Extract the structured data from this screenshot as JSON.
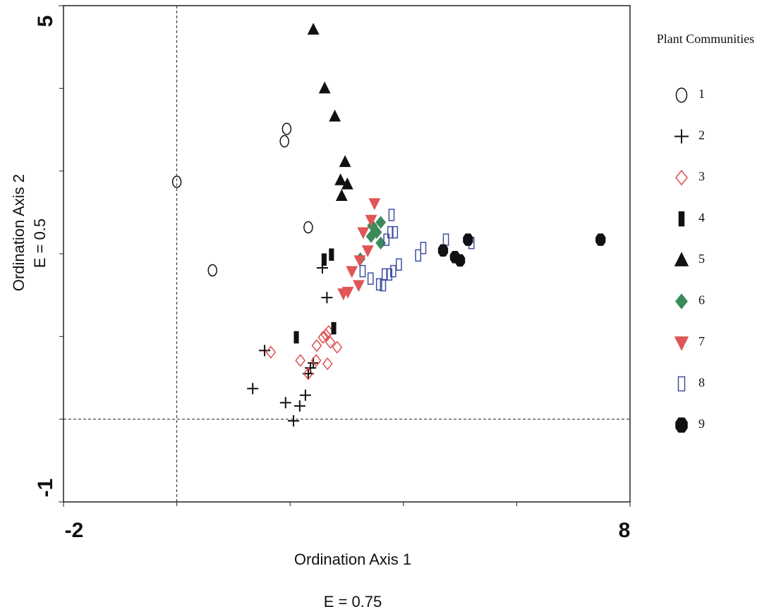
{
  "chart_data": {
    "type": "scatter",
    "xlabel": "Ordination Axis 1",
    "xlabel2": "E = 0.75",
    "ylabel": "Ordination Axis 2",
    "ylabel2": "E = 0.5",
    "legend_title": "Plant Communities",
    "legend": "right",
    "xlim": [
      -2,
      8
    ],
    "ylim": [
      -1,
      5
    ],
    "xticks": [
      -2,
      8
    ],
    "yticks": [
      -1,
      5
    ],
    "xminorticks": [
      0,
      2,
      4,
      6
    ],
    "yminorticks": [
      0,
      1,
      2,
      3,
      4
    ],
    "vlines": [
      0
    ],
    "hlines": [
      0
    ],
    "series": [
      {
        "name": "1",
        "color": "#111111",
        "marker": "circle",
        "filled": false,
        "x": [
          1.94,
          1.9,
          0.0,
          2.32,
          0.63
        ],
        "values": [
          3.51,
          3.36,
          2.87,
          2.32,
          1.8
        ]
      },
      {
        "name": "2",
        "color": "#111111",
        "marker": "plus",
        "filled": true,
        "x": [
          2.57,
          2.65,
          1.55,
          1.34,
          1.92,
          2.17,
          2.27,
          2.06,
          2.36,
          2.32,
          2.41
        ],
        "values": [
          1.83,
          1.47,
          0.83,
          0.37,
          0.2,
          0.16,
          0.29,
          -0.02,
          0.62,
          0.55,
          0.68
        ]
      },
      {
        "name": "3",
        "color": "#e05050",
        "marker": "diamond",
        "filled": false,
        "x": [
          1.66,
          2.18,
          2.32,
          2.46,
          2.66,
          2.47,
          2.58,
          2.63,
          2.71,
          2.83,
          2.68
        ],
        "values": [
          0.81,
          0.71,
          0.55,
          0.71,
          0.67,
          0.89,
          0.99,
          1.02,
          0.93,
          0.87,
          1.06
        ]
      },
      {
        "name": "4",
        "color": "#111111",
        "marker": "bar",
        "filled": true,
        "x": [
          2.6,
          2.73,
          2.11,
          2.77
        ],
        "values": [
          1.93,
          1.99,
          0.99,
          1.1
        ]
      },
      {
        "name": "5",
        "color": "#111111",
        "marker": "triangle",
        "filled": true,
        "x": [
          2.41,
          2.61,
          2.79,
          2.97,
          2.89,
          3.01,
          2.91
        ],
        "values": [
          4.71,
          4.0,
          3.66,
          3.11,
          2.89,
          2.84,
          2.7
        ]
      },
      {
        "name": "6",
        "color": "#3a8a5a",
        "marker": "diamond",
        "filled": true,
        "x": [
          3.24,
          3.45,
          3.6,
          3.53,
          3.6,
          3.43
        ],
        "values": [
          1.94,
          2.34,
          2.38,
          2.26,
          2.13,
          2.21
        ]
      },
      {
        "name": "7",
        "color": "#e05555",
        "marker": "triangle-down",
        "filled": true,
        "x": [
          3.49,
          3.43,
          3.29,
          3.37,
          3.09,
          3.21,
          3.02,
          2.94,
          3.23
        ],
        "values": [
          2.61,
          2.41,
          2.26,
          2.04,
          1.79,
          1.62,
          1.54,
          1.52,
          1.92
        ]
      },
      {
        "name": "8",
        "color": "#4050a0",
        "marker": "rect",
        "filled": false,
        "x": [
          3.79,
          3.77,
          3.85,
          3.7,
          3.42,
          3.57,
          3.64,
          3.67,
          3.75,
          3.82,
          3.92,
          4.26,
          4.35,
          4.75,
          5.2,
          3.28
        ],
        "values": [
          2.47,
          2.26,
          2.26,
          2.17,
          1.7,
          1.63,
          1.62,
          1.75,
          1.75,
          1.79,
          1.87,
          1.98,
          2.07,
          2.17,
          2.13,
          1.79
        ]
      },
      {
        "name": "9",
        "color": "#111111",
        "marker": "octagon",
        "filled": true,
        "x": [
          4.7,
          4.91,
          5.0,
          5.14,
          7.48
        ],
        "values": [
          2.04,
          1.96,
          1.92,
          2.17,
          2.17
        ]
      }
    ]
  }
}
